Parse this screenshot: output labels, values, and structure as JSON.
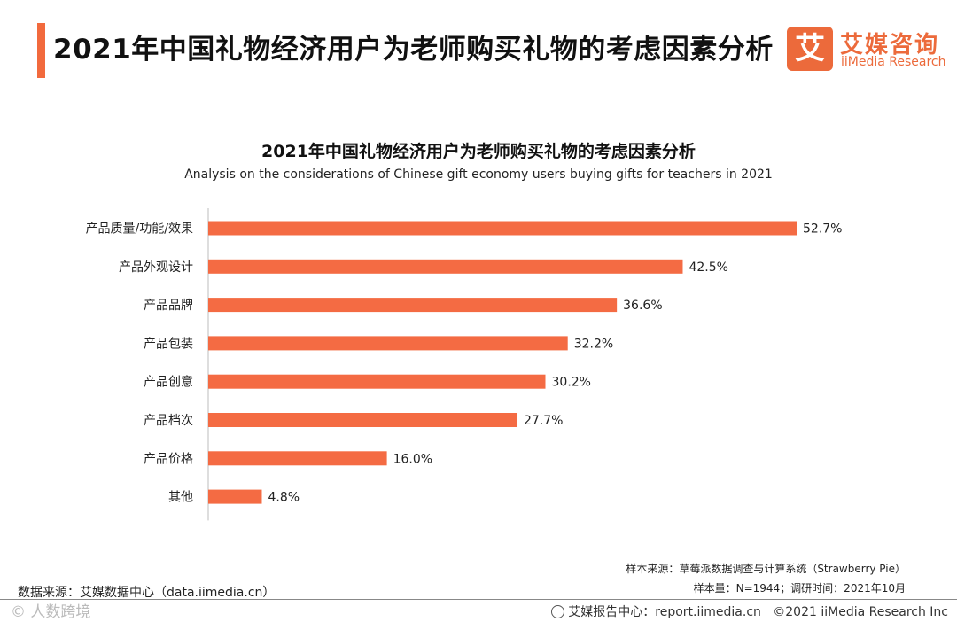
{
  "header": {
    "title": "2021年中国礼物经济用户为老师购买礼物的考虑因素分析",
    "logo_char": "艾",
    "logo_cn": "艾媒咨询",
    "logo_en": "iiMedia Research"
  },
  "colors": {
    "accent": "#f26a3d",
    "bar": "#f46b43"
  },
  "chart_data": {
    "type": "bar",
    "orientation": "horizontal",
    "title": "2021年中国礼物经济用户为老师购买礼物的考虑因素分析",
    "subtitle": "Analysis on the considerations of Chinese gift economy users buying gifts for teachers in 2021",
    "categories": [
      "产品质量/功能/效果",
      "产品外观设计",
      "产品品牌",
      "产品包装",
      "产品创意",
      "产品档次",
      "产品价格",
      "其他"
    ],
    "values": [
      52.7,
      42.5,
      36.6,
      32.2,
      30.2,
      27.7,
      16.0,
      4.8
    ],
    "labels": [
      "52.7%",
      "42.5%",
      "36.6%",
      "32.2%",
      "30.2%",
      "27.7%",
      "16.0%",
      "4.8%"
    ],
    "unit": "%",
    "xlim": [
      0,
      52.7
    ],
    "xlabel": "",
    "ylabel": "",
    "grid": false
  },
  "footer": {
    "sample_source": "样本来源：草莓派数据调查与计算系统（Strawberry Pie）",
    "sample_info": "样本量：N=1944；调研时间：2021年10月",
    "data_source": "数据来源：艾媒数据中心（data.iimedia.cn）",
    "report_center": "艾媒报告中心：report.iimedia.cn",
    "copyright": "©2021  iiMedia Research  Inc",
    "watermark": "©  人数跨境"
  }
}
